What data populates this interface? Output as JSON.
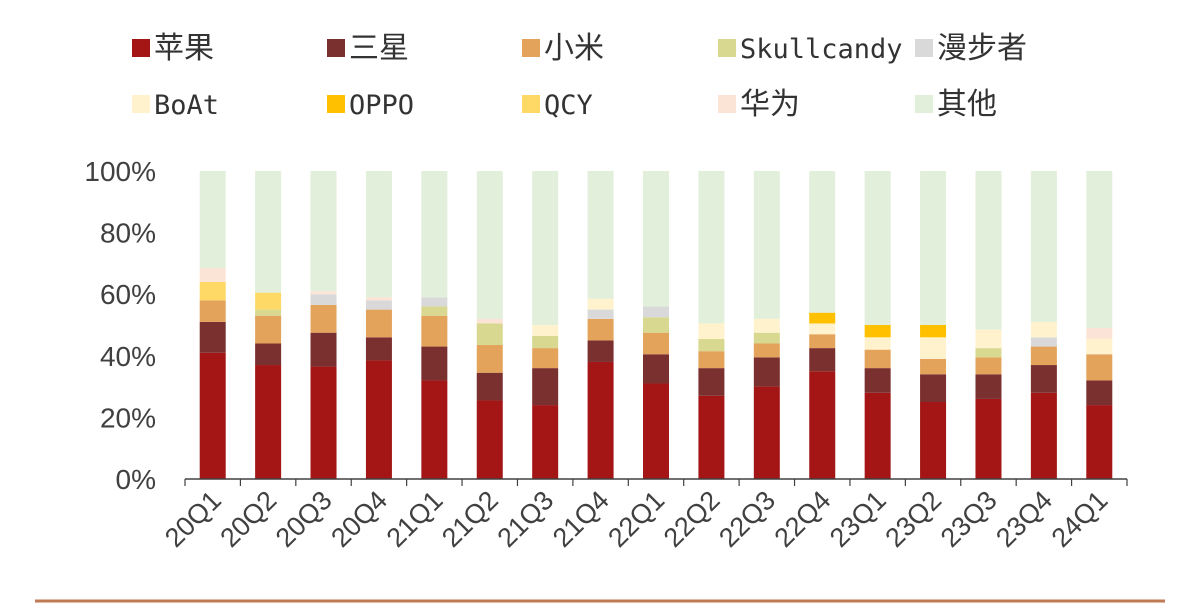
{
  "chart_data": {
    "type": "bar",
    "stacked": true,
    "title": "",
    "xlabel": "",
    "ylabel": "",
    "ylim": [
      0,
      100
    ],
    "y_ticks": [
      "0%",
      "20%",
      "40%",
      "60%",
      "80%",
      "100%"
    ],
    "legend_position": "top",
    "categories": [
      "20Q1",
      "20Q2",
      "20Q3",
      "20Q4",
      "21Q1",
      "21Q2",
      "21Q3",
      "21Q4",
      "22Q1",
      "22Q2",
      "22Q3",
      "22Q4",
      "23Q1",
      "23Q2",
      "23Q3",
      "23Q4",
      "24Q1"
    ],
    "series": [
      {
        "name": "苹果",
        "color": "#A41616",
        "values": [
          41,
          37,
          36.5,
          38.5,
          32,
          25.5,
          24,
          38,
          31,
          27,
          30,
          35,
          28,
          25,
          26,
          28,
          24
        ]
      },
      {
        "name": "三星",
        "color": "#7B3030",
        "values": [
          10,
          7,
          11,
          7.5,
          11,
          9,
          12,
          7,
          9.5,
          9,
          9.5,
          7.5,
          8,
          9,
          8,
          9,
          8
        ]
      },
      {
        "name": "小米",
        "color": "#E3A35A",
        "values": [
          7,
          9,
          9,
          9,
          10,
          9,
          6.5,
          7,
          7,
          5.5,
          4.5,
          4.5,
          6,
          5,
          5.5,
          6,
          8.5
        ]
      },
      {
        "name": "Skullcandy",
        "color": "#D8D890",
        "values": [
          0,
          2,
          0,
          0,
          3,
          7,
          4,
          0,
          5,
          4,
          3.5,
          0,
          0,
          0,
          3,
          0,
          0
        ]
      },
      {
        "name": "漫步者",
        "color": "#D9D9D9",
        "values": [
          0,
          0,
          3.5,
          3,
          3,
          0,
          0,
          3,
          3.5,
          0,
          0,
          0,
          0,
          0,
          0,
          3,
          0
        ]
      },
      {
        "name": "BoAt",
        "color": "#FFF2CC",
        "values": [
          0,
          0,
          0,
          0,
          0,
          0,
          3.5,
          3.5,
          0,
          5,
          4.5,
          3.5,
          4,
          7,
          6,
          5,
          5
        ]
      },
      {
        "name": "OPPO",
        "color": "#FFC000",
        "values": [
          0,
          0,
          0,
          0,
          0,
          0,
          0,
          0,
          0,
          0,
          0,
          3.5,
          4,
          4,
          0,
          0,
          0
        ]
      },
      {
        "name": "QCY",
        "color": "#FFD966",
        "values": [
          6,
          5.5,
          0,
          0,
          0,
          0,
          0,
          0,
          0,
          0,
          0,
          0,
          0,
          0,
          0,
          0,
          0
        ]
      },
      {
        "name": "华为",
        "color": "#FBE4D5",
        "values": [
          4.5,
          0,
          1,
          1,
          0,
          1.5,
          0,
          0,
          0,
          0,
          0,
          0,
          0,
          0,
          0,
          0,
          3.5
        ]
      },
      {
        "name": "其他",
        "color": "#E2EFDA",
        "values": [
          31.5,
          39.5,
          39,
          41,
          41,
          48,
          50,
          41.5,
          44,
          49.5,
          48,
          46,
          50,
          50,
          51.5,
          49,
          51
        ]
      }
    ]
  },
  "colors": {
    "footer_rule": "#C07A52",
    "axis": "#404040"
  }
}
